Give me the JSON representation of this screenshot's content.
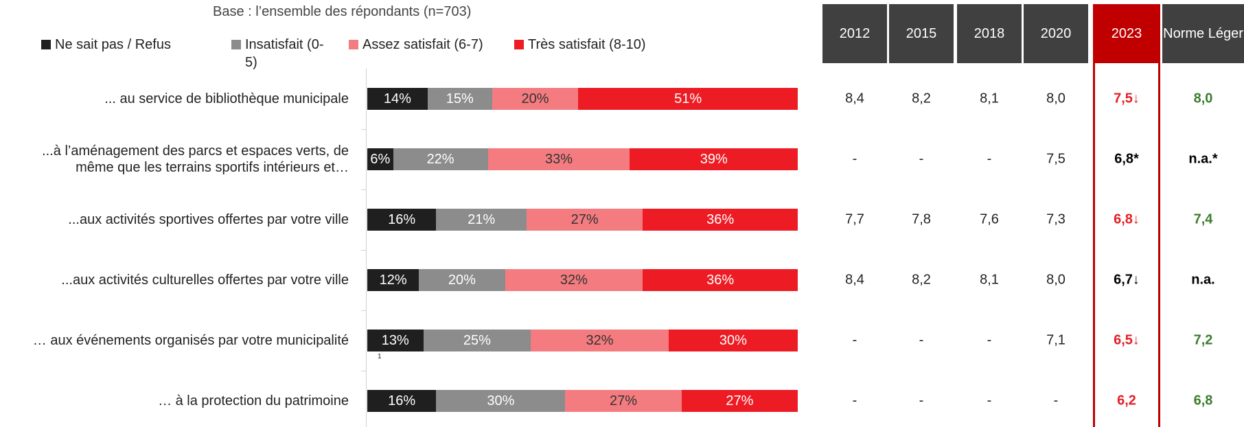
{
  "chart_data": {
    "type": "bar",
    "orientation": "horizontal",
    "stacked": true,
    "subtitle": "Base : l’ensemble des répondants (n=703)",
    "categories": [
      "... au service de bibliothèque municipale",
      "...à l’aménagement des parcs et espaces verts, de même que les terrains sportifs intérieurs et…",
      "...aux activités sportives offertes par votre ville",
      "...aux activités culturelles offertes par votre ville",
      "… aux événements organisés par votre municipalité",
      "… à la protection du patrimoine"
    ],
    "xlim": [
      0,
      100
    ],
    "series": [
      {
        "name": "Ne sait pas / Refus",
        "color": "#1f1f1f",
        "values": [
          14,
          6,
          16,
          12,
          13,
          16
        ],
        "value_labels": [
          "14%",
          "6%",
          "16%",
          "12%",
          "13%",
          "16%"
        ]
      },
      {
        "name": "Insatisfait (0-5)",
        "color": "#8c8c8c",
        "values": [
          15,
          22,
          21,
          20,
          25,
          30
        ],
        "value_labels": [
          "15%",
          "22%",
          "21%",
          "20%",
          "25%",
          "30%"
        ]
      },
      {
        "name": "Assez satisfait (6-7)",
        "color": "#f47c80",
        "values": [
          20,
          33,
          27,
          32,
          32,
          27
        ],
        "value_labels": [
          "20%",
          "33%",
          "27%",
          "32%",
          "32%",
          "27%"
        ]
      },
      {
        "name": "Très satisfait (8-10)",
        "color": "#ed1c24",
        "values": [
          51,
          39,
          36,
          36,
          30,
          27
        ],
        "value_labels": [
          "51%",
          "39%",
          "36%",
          "36%",
          "30%",
          "27%"
        ]
      }
    ],
    "annotation": "1"
  },
  "table": {
    "header": [
      "2012",
      "2015",
      "2018",
      "2020",
      "2023",
      "Norme Léger"
    ],
    "rows": [
      [
        "8,4",
        "8,2",
        "8,1",
        "8,0",
        "7,5↓",
        "8,0"
      ],
      [
        "-",
        "-",
        "-",
        "7,5",
        "6,8*",
        "n.a.*"
      ],
      [
        "7,7",
        "7,8",
        "7,6",
        "7,3",
        "6,8↓",
        "7,4"
      ],
      [
        "8,4",
        "8,2",
        "8,1",
        "8,0",
        "6,7↓",
        "n.a."
      ],
      [
        "-",
        "-",
        "-",
        "7,1",
        "6,5↓",
        "7,2"
      ],
      [
        "-",
        "-",
        "-",
        "-",
        "6,2",
        "6,8"
      ]
    ],
    "colors": [
      [
        "#e31e24",
        "#3a7d2c"
      ],
      [
        "#000000",
        "#000000"
      ],
      [
        "#e31e24",
        "#3a7d2c"
      ],
      [
        "#000000",
        "#000000"
      ],
      [
        "#e31e24",
        "#3a7d2c"
      ],
      [
        "#e31e24",
        "#3a7d2c"
      ]
    ]
  }
}
